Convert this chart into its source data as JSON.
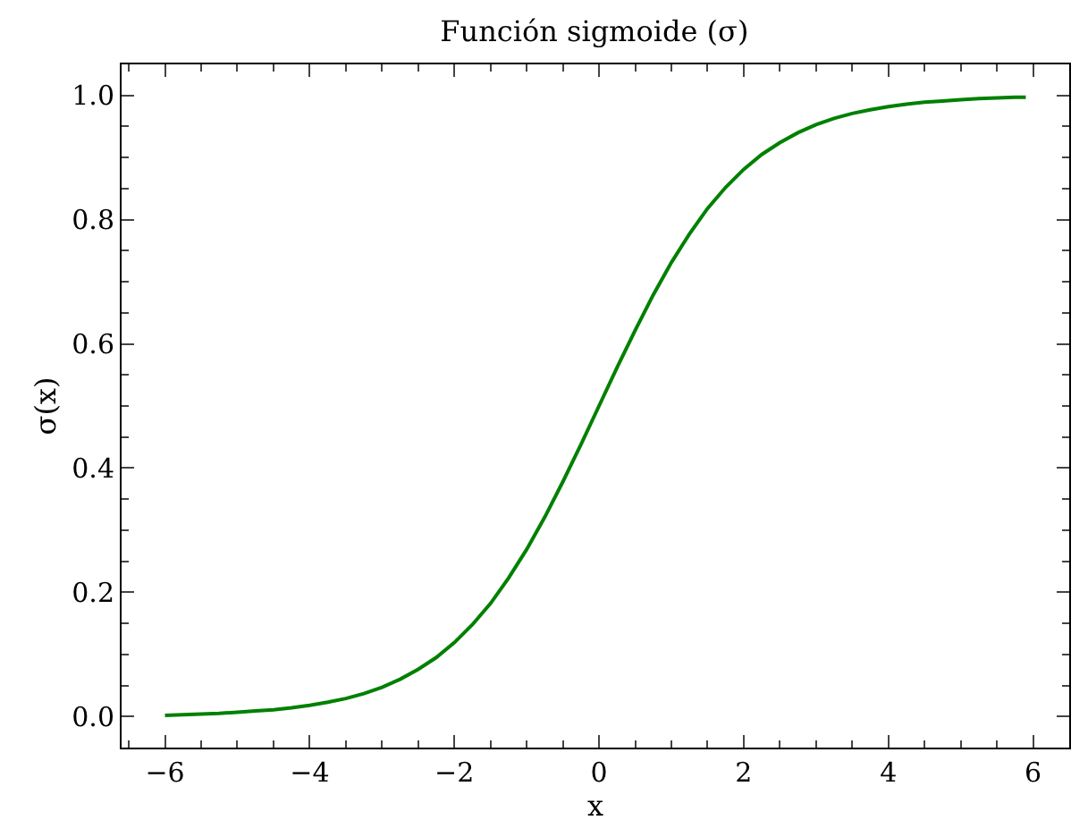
{
  "chart_data": {
    "type": "line",
    "title": "Función sigmoide (σ)",
    "xlabel": "x",
    "ylabel": "σ(x)",
    "x": [
      -6,
      -5.75,
      -5.5,
      -5.25,
      -5,
      -4.75,
      -4.5,
      -4.25,
      -4,
      -3.75,
      -3.5,
      -3.25,
      -3,
      -2.75,
      -2.5,
      -2.25,
      -2,
      -1.75,
      -1.5,
      -1.25,
      -1,
      -0.75,
      -0.5,
      -0.25,
      0,
      0.25,
      0.5,
      0.75,
      1,
      1.25,
      1.5,
      1.75,
      2,
      2.25,
      2.5,
      2.75,
      3,
      3.25,
      3.5,
      3.75,
      4,
      4.25,
      4.5,
      4.75,
      5,
      5.25,
      5.5,
      5.75,
      5.9
    ],
    "series": [
      {
        "color": "#008000",
        "values": [
          0.002,
          0.003,
          0.004,
          0.005,
          0.007,
          0.009,
          0.011,
          0.014,
          0.018,
          0.023,
          0.029,
          0.037,
          0.047,
          0.06,
          0.076,
          0.095,
          0.119,
          0.148,
          0.182,
          0.223,
          0.269,
          0.321,
          0.378,
          0.438,
          0.5,
          0.562,
          0.622,
          0.679,
          0.731,
          0.777,
          0.818,
          0.852,
          0.881,
          0.905,
          0.924,
          0.94,
          0.953,
          0.963,
          0.971,
          0.977,
          0.982,
          0.986,
          0.989,
          0.991,
          0.993,
          0.995,
          0.996,
          0.997,
          0.997
        ]
      }
    ],
    "xlim": [
      -6.6,
      6.5
    ],
    "xticks": [
      {
        "value": -6,
        "label": "−6"
      },
      {
        "value": -4,
        "label": "−4"
      },
      {
        "value": -2,
        "label": "−2"
      },
      0,
      2,
      4,
      6
    ],
    "ylim": [
      -0.05,
      1.05
    ],
    "yticks": [
      {
        "value": 0,
        "label": "0.0"
      },
      {
        "value": 0.2,
        "label": "0.2"
      },
      {
        "value": 0.4,
        "label": "0.4"
      },
      {
        "value": 0.6,
        "label": "0.6"
      },
      {
        "value": 0.8,
        "label": "0.8"
      },
      {
        "value": 1,
        "label": "1.0"
      }
    ],
    "grid": false,
    "marker": "none",
    "line_style": "solid"
  }
}
